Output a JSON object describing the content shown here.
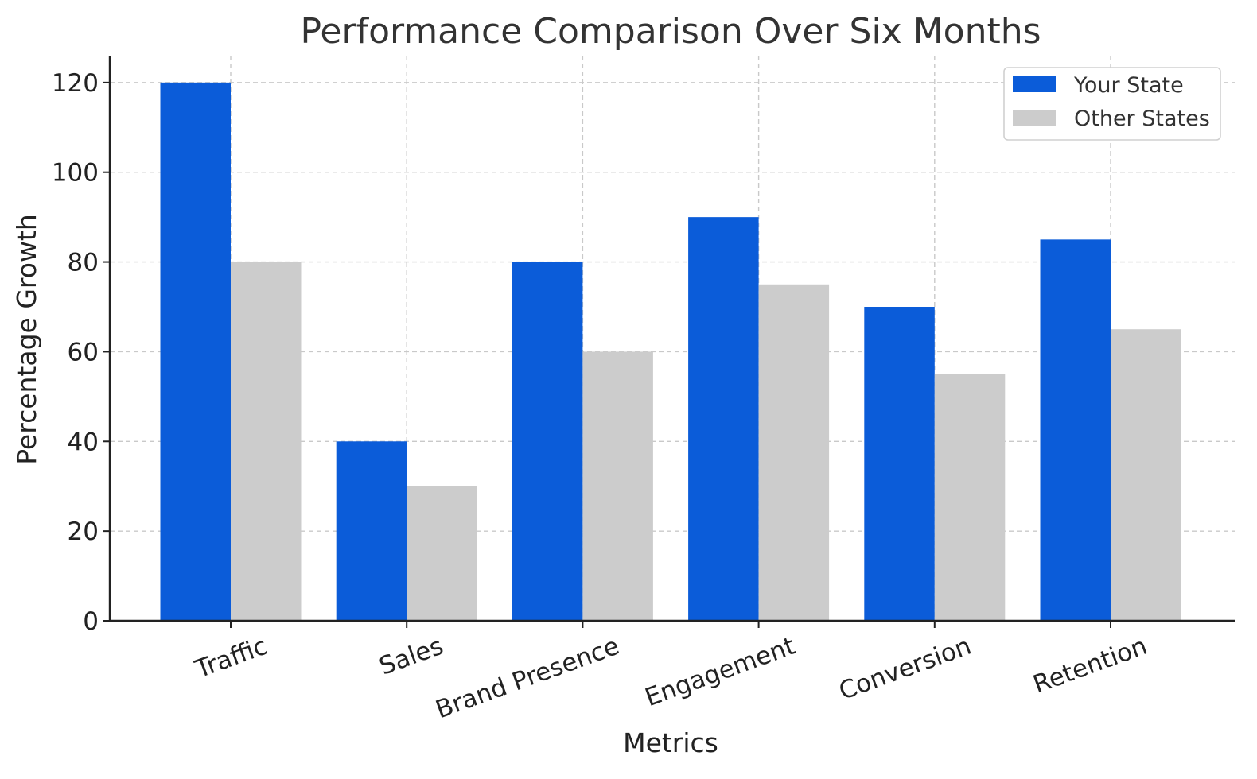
{
  "chart_data": {
    "type": "bar",
    "title": "Performance Comparison Over Six Months",
    "xlabel": "Metrics",
    "ylabel": "Percentage Growth",
    "categories": [
      "Traffic",
      "Sales",
      "Brand Presence",
      "Engagement",
      "Conversion",
      "Retention"
    ],
    "series": [
      {
        "name": "Your State",
        "color": "#0b5cd9",
        "values": [
          120,
          40,
          80,
          90,
          70,
          85
        ]
      },
      {
        "name": "Other States",
        "color": "#cccccc",
        "values": [
          80,
          30,
          60,
          75,
          55,
          65
        ]
      }
    ],
    "ylim": [
      0,
      126
    ],
    "yticks": [
      0,
      20,
      40,
      60,
      80,
      100,
      120
    ],
    "grid": true,
    "legend": "top-right",
    "x_tick_rotation_deg": -20
  }
}
